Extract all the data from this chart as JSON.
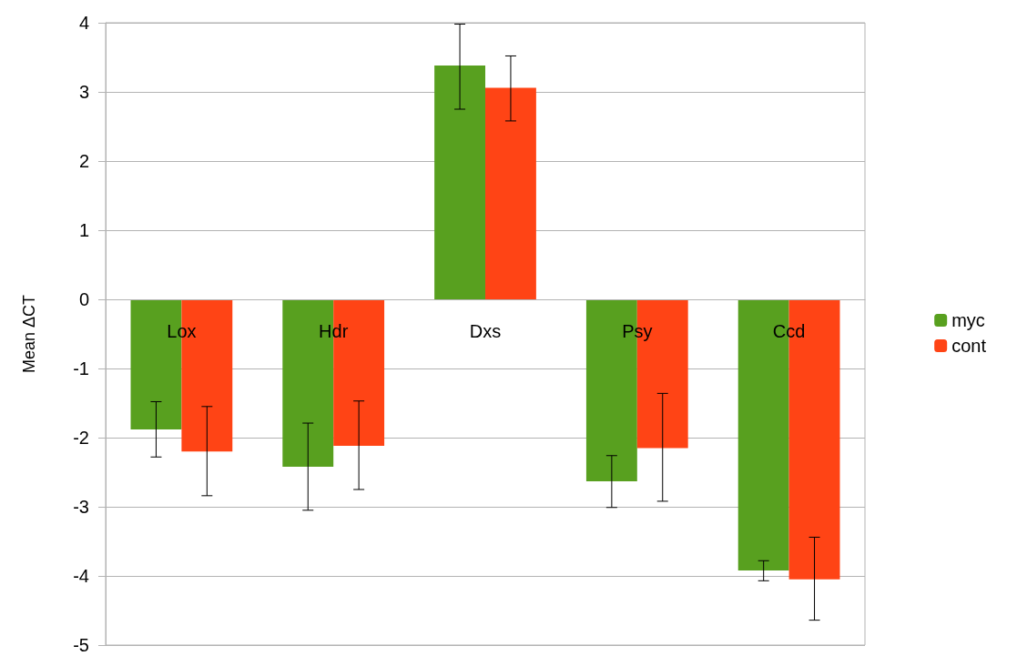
{
  "chart_data": {
    "type": "bar",
    "ylabel": "Mean ΔCT",
    "categories": [
      "Lox",
      "Hdr",
      "Dxs",
      "Psy",
      "Ccd"
    ],
    "series": [
      {
        "name": "myc",
        "color": "#58a01f",
        "values": [
          -1.88,
          -2.42,
          3.38,
          -2.63,
          -3.92
        ],
        "errors": [
          [
            -2.28,
            -1.48
          ],
          [
            -3.05,
            -1.79
          ],
          [
            2.75,
            3.98
          ],
          [
            -3.01,
            -2.26
          ],
          [
            -4.07,
            -3.78
          ]
        ]
      },
      {
        "name": "cont",
        "color": "#ff4415",
        "values": [
          -2.2,
          -2.12,
          3.06,
          -2.15,
          -4.05
        ],
        "errors": [
          [
            -2.84,
            -1.55
          ],
          [
            -2.75,
            -1.47
          ],
          [
            2.58,
            3.52
          ],
          [
            -2.92,
            -1.36
          ],
          [
            -4.64,
            -3.44
          ]
        ]
      }
    ],
    "ylim": [
      -5,
      4
    ],
    "yticks": [
      -5,
      -4,
      -3,
      -2,
      -1,
      0,
      1,
      2,
      3,
      4
    ],
    "grid": "y",
    "legend": "right"
  }
}
